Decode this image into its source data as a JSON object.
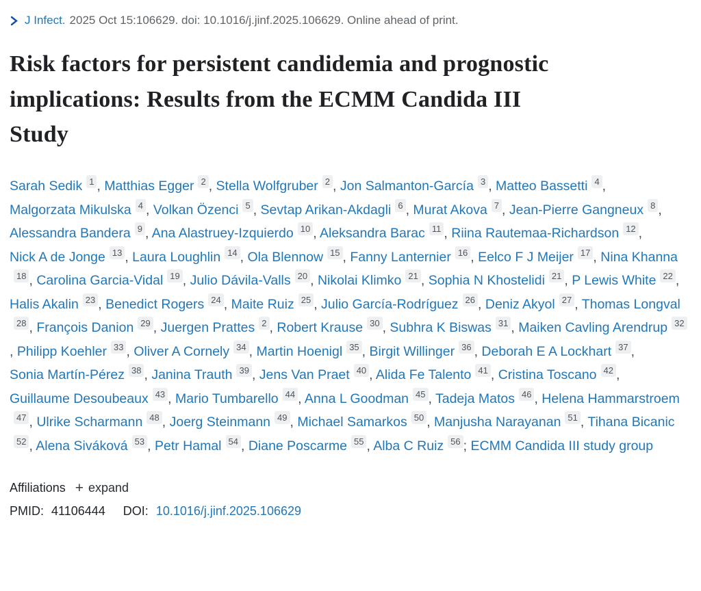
{
  "colors": {
    "link": "#2277b8",
    "chevron": "#1351a0",
    "citation_text": "#5f6469",
    "title_text": "#1f2125",
    "badge_bg": "#edeff1",
    "badge_text": "#50555b"
  },
  "citation": {
    "journal_link": "J Infect.",
    "details": "2025 Oct 15:106629. doi: 10.1016/j.jinf.2025.106629. Online ahead of print."
  },
  "title": "Risk factors for persistent candidemia and prognostic implications: Results from the ECMM Candida III Study",
  "authors": {
    "separator": ", ",
    "final_separator": "; ",
    "list": [
      {
        "name": "Sarah Sedik",
        "sup": "1"
      },
      {
        "name": "Matthias Egger",
        "sup": "2"
      },
      {
        "name": "Stella Wolfgruber",
        "sup": "2"
      },
      {
        "name": "Jon Salmanton-García",
        "sup": "3"
      },
      {
        "name": "Matteo Bassetti",
        "sup": "4"
      },
      {
        "name": "Malgorzata Mikulska",
        "sup": "4"
      },
      {
        "name": "Volkan Özenci",
        "sup": "5"
      },
      {
        "name": "Sevtap Arikan-Akdagli",
        "sup": "6"
      },
      {
        "name": "Murat Akova",
        "sup": "7"
      },
      {
        "name": "Jean-Pierre Gangneux",
        "sup": "8"
      },
      {
        "name": "Alessandra Bandera",
        "sup": "9"
      },
      {
        "name": "Ana Alastruey-Izquierdo",
        "sup": "10"
      },
      {
        "name": "Aleksandra Barac",
        "sup": "11"
      },
      {
        "name": "Riina Rautemaa-Richardson",
        "sup": "12"
      },
      {
        "name": "Nick A de Jonge",
        "sup": "13"
      },
      {
        "name": "Laura Loughlin",
        "sup": "14"
      },
      {
        "name": "Ola Blennow",
        "sup": "15"
      },
      {
        "name": "Fanny Lanternier",
        "sup": "16"
      },
      {
        "name": "Eelco F J Meijer",
        "sup": "17"
      },
      {
        "name": "Nina Khanna",
        "sup": "18"
      },
      {
        "name": "Carolina Garcia-Vidal",
        "sup": "19"
      },
      {
        "name": "Julio Dávila-Valls",
        "sup": "20"
      },
      {
        "name": "Nikolai Klimko",
        "sup": "21"
      },
      {
        "name": "Sophia N Khostelidi",
        "sup": "21"
      },
      {
        "name": "P Lewis White",
        "sup": "22"
      },
      {
        "name": "Halis Akalin",
        "sup": "23"
      },
      {
        "name": "Benedict Rogers",
        "sup": "24"
      },
      {
        "name": "Maite Ruiz",
        "sup": "25"
      },
      {
        "name": "Julio García-Rodríguez",
        "sup": "26"
      },
      {
        "name": "Deniz Akyol",
        "sup": "27"
      },
      {
        "name": "Thomas Longval",
        "sup": "28"
      },
      {
        "name": "François Danion",
        "sup": "29"
      },
      {
        "name": "Juergen Prattes",
        "sup": "2"
      },
      {
        "name": "Robert Krause",
        "sup": "30"
      },
      {
        "name": "Subhra K Biswas",
        "sup": "31"
      },
      {
        "name": "Maiken Cavling Arendrup",
        "sup": "32"
      },
      {
        "name": "Philipp Koehler",
        "sup": "33"
      },
      {
        "name": "Oliver A Cornely",
        "sup": "34"
      },
      {
        "name": "Martin Hoenigl",
        "sup": "35"
      },
      {
        "name": "Birgit Willinger",
        "sup": "36"
      },
      {
        "name": "Deborah E A Lockhart",
        "sup": "37"
      },
      {
        "name": "Sonia Martín-Pérez",
        "sup": "38"
      },
      {
        "name": "Janina Trauth",
        "sup": "39"
      },
      {
        "name": "Jens Van Praet",
        "sup": "40"
      },
      {
        "name": "Alida Fe Talento",
        "sup": "41"
      },
      {
        "name": "Cristina Toscano",
        "sup": "42"
      },
      {
        "name": "Guillaume Desoubeaux",
        "sup": "43"
      },
      {
        "name": "Mario Tumbarello",
        "sup": "44"
      },
      {
        "name": "Anna L Goodman",
        "sup": "45"
      },
      {
        "name": "Tadeja Matos",
        "sup": "46"
      },
      {
        "name": "Helena Hammarstroem",
        "sup": "47"
      },
      {
        "name": "Ulrike Scharmann",
        "sup": "48"
      },
      {
        "name": "Joerg Steinmann",
        "sup": "49"
      },
      {
        "name": "Michael Samarkos",
        "sup": "50"
      },
      {
        "name": "Manjusha Narayanan",
        "sup": "51"
      },
      {
        "name": "Tihana Bicanic",
        "sup": "52"
      },
      {
        "name": "Alena Siváková",
        "sup": "53"
      },
      {
        "name": "Petr Hamal",
        "sup": "54"
      },
      {
        "name": "Diane Poscarme",
        "sup": "55"
      },
      {
        "name": "Alba C Ruiz",
        "sup": "56"
      }
    ],
    "collective": "ECMM Candida III study group"
  },
  "affiliations": {
    "label": "Affiliations",
    "plus_icon": "+",
    "expand_label": "expand"
  },
  "identifiers": {
    "pmid_label": "PMID:",
    "pmid": "41106444",
    "doi_label": "DOI:",
    "doi": "10.1016/j.jinf.2025.106629"
  }
}
